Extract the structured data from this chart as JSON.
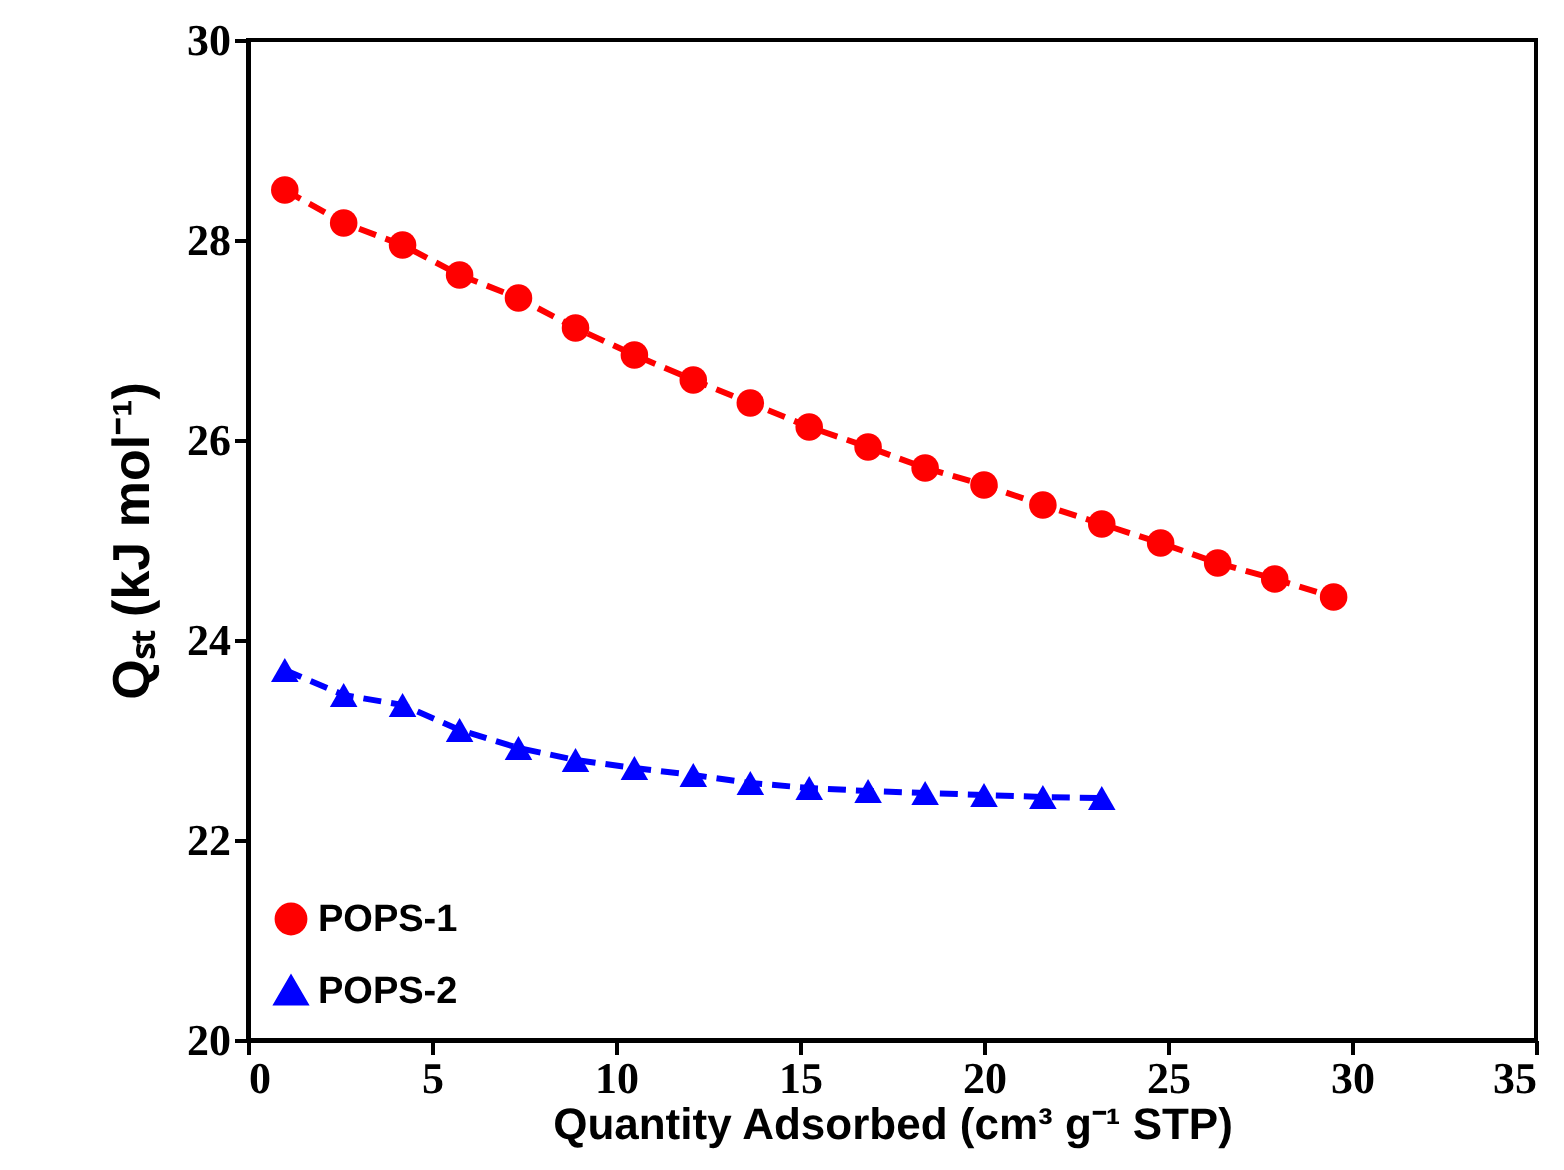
{
  "chart_data": {
    "type": "line",
    "xlabel": "Quantity Adsorbed (cm³ g⁻¹ STP)",
    "ylabel": "Qₛₜ  (kJ mol⁻¹)",
    "xlim": [
      0,
      35
    ],
    "xticks": [
      0,
      5,
      10,
      15,
      20,
      25,
      30,
      35
    ],
    "ylim": [
      20,
      30
    ],
    "yticks": [
      20,
      22,
      24,
      26,
      28,
      30
    ],
    "grid": false,
    "legend": "bottom left",
    "line_style": "dashed",
    "series": [
      {
        "name": "POPS-1",
        "color": "#ff0000",
        "marker": "circle",
        "x": [
          1.0,
          2.6,
          4.2,
          5.75,
          7.35,
          8.9,
          10.5,
          12.1,
          13.65,
          15.25,
          16.85,
          18.4,
          20.0,
          21.6,
          23.2,
          24.8,
          26.35,
          27.9,
          29.5
        ],
        "values": [
          28.5,
          28.17,
          27.95,
          27.65,
          27.42,
          27.12,
          26.85,
          26.6,
          26.37,
          26.13,
          25.93,
          25.72,
          25.55,
          25.35,
          25.16,
          24.97,
          24.77,
          24.61,
          24.43
        ]
      },
      {
        "name": "POPS-2",
        "color": "#0000ff",
        "marker": "triangle",
        "x": [
          1.0,
          2.6,
          4.2,
          5.75,
          7.35,
          8.9,
          10.5,
          12.1,
          13.65,
          15.25,
          16.85,
          18.4,
          20.0,
          21.6,
          23.2
        ],
        "values": [
          23.7,
          23.45,
          23.35,
          23.1,
          22.92,
          22.8,
          22.72,
          22.65,
          22.57,
          22.52,
          22.49,
          22.47,
          22.45,
          22.43,
          22.42
        ]
      }
    ]
  }
}
